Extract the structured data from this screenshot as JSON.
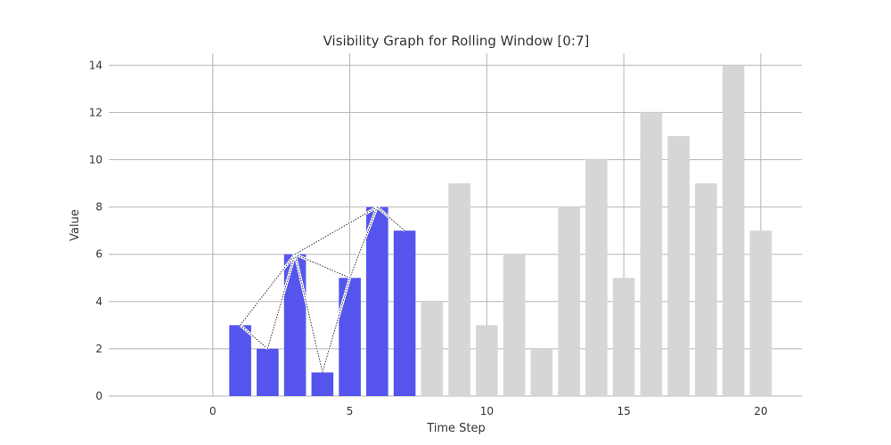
{
  "chart_data": {
    "type": "bar",
    "title": "Visibility Graph for Rolling Window [0:7]",
    "xlabel": "Time Step",
    "ylabel": "Value",
    "xlim": [
      -3.8,
      21.5
    ],
    "ylim": [
      0,
      14.5
    ],
    "x_ticks": [
      0,
      5,
      10,
      15,
      20
    ],
    "y_ticks": [
      0,
      2,
      4,
      6,
      8,
      10,
      12,
      14
    ],
    "grid": true,
    "x": [
      1,
      2,
      3,
      4,
      5,
      6,
      7,
      8,
      9,
      10,
      11,
      12,
      13,
      14,
      15,
      16,
      17,
      18,
      19,
      20
    ],
    "values": [
      3,
      2,
      6,
      1,
      5,
      8,
      7,
      4,
      9,
      3,
      6,
      2,
      8,
      10,
      5,
      12,
      11,
      9,
      14,
      7
    ],
    "rolling_window": {
      "start_x": 1,
      "end_x": 7
    },
    "highlight_color": "#5555ee",
    "rest_color": "#d6d6d6",
    "visibility_edges": [
      [
        1,
        2
      ],
      [
        1,
        3
      ],
      [
        2,
        3
      ],
      [
        3,
        4
      ],
      [
        3,
        5
      ],
      [
        3,
        6
      ],
      [
        4,
        5
      ],
      [
        5,
        6
      ],
      [
        6,
        7
      ]
    ]
  }
}
